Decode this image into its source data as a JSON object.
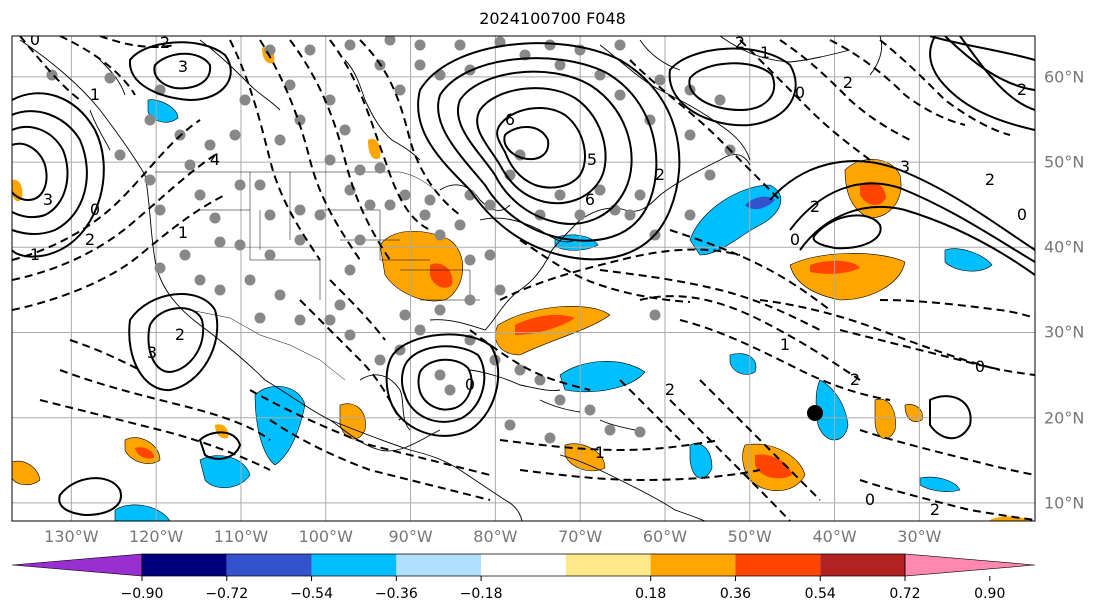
{
  "title": "2024100700 F048",
  "lon_labels": [
    {
      "text": "130°W",
      "lon": -130
    },
    {
      "text": "120°W",
      "lon": -120
    },
    {
      "text": "110°W",
      "lon": -110
    },
    {
      "text": "100°W",
      "lon": -100
    },
    {
      "text": "90°W",
      "lon": -90
    },
    {
      "text": "80°W",
      "lon": -80
    },
    {
      "text": "70°W",
      "lon": -70
    },
    {
      "text": "60°W",
      "lon": -60
    },
    {
      "text": "50°W",
      "lon": -50
    },
    {
      "text": "40°W",
      "lon": -40
    },
    {
      "text": "30°W",
      "lon": -30
    }
  ],
  "lat_labels": [
    {
      "text": "60°N",
      "lat": 60
    },
    {
      "text": "50°N",
      "lat": 50
    },
    {
      "text": "40°N",
      "lat": 40
    },
    {
      "text": "30°N",
      "lat": 30
    },
    {
      "text": "20°N",
      "lat": 20
    },
    {
      "text": "10°N",
      "lat": 10
    }
  ],
  "colorbar": {
    "ticks": [
      "−0.90",
      "−0.72",
      "−0.54",
      "−0.36",
      "−0.18",
      "0.18",
      "0.36",
      "0.54",
      "0.72",
      "0.90"
    ],
    "colors": [
      "#9a2fd1",
      "#00007f",
      "#3353cc",
      "#00bfff",
      "#afdffa",
      "#ffffff",
      "#fee88a",
      "#ffa500",
      "#ff4500",
      "#b22222",
      "#ff88b0"
    ]
  },
  "contour_labels": [
    "0",
    "2",
    "3",
    "1",
    "0",
    "2",
    "1",
    "3",
    "6",
    "5",
    "6",
    "2",
    "2",
    "1",
    "0",
    "2",
    "3",
    "2",
    "0",
    "2",
    "0",
    "2",
    "1",
    "2",
    "0",
    "0",
    "2",
    "2",
    "1",
    "4",
    "1",
    "2",
    "0",
    "3",
    "1"
  ],
  "colors": {
    "map_line": "#000000",
    "grid": "#aaaaaa",
    "station": "#888888",
    "label": "#777777"
  }
}
